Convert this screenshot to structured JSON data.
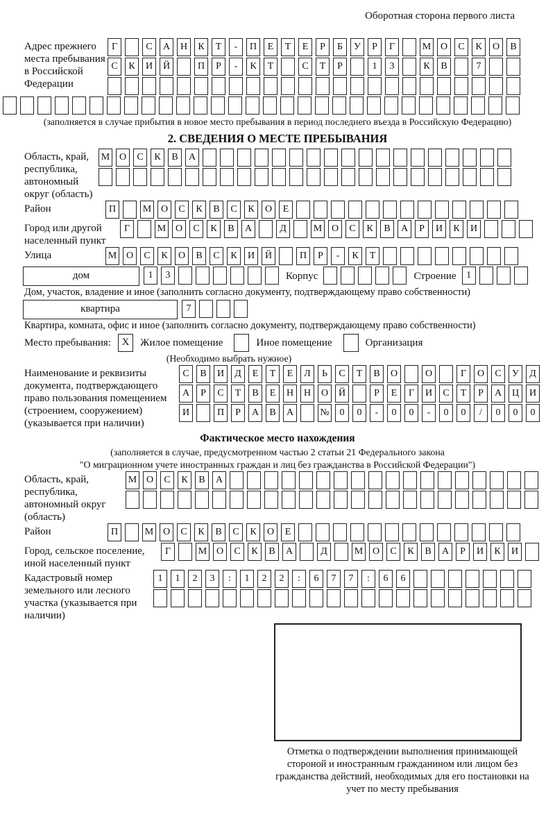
{
  "page": {
    "header_note": "Оборотная сторона первого листа"
  },
  "colors": {
    "ink": "#1a1a1a",
    "paper": "#ffffff"
  },
  "prev_address": {
    "label": "Адрес прежнего места пребывания в Российской Федерации",
    "rows": [
      {
        "cells": "Г САНКТ-ПЕТЕРБУРГ МОСКОВ",
        "count": 24
      },
      {
        "cells": "СКИЙ ПР-КТ СТР 13 КВ 7",
        "count": 24
      },
      {
        "cells": "",
        "count": 24
      },
      {
        "cells": "",
        "count": 30
      }
    ],
    "note": "(заполняется в случае прибытия в новое место пребывания в период последнего въезда в Российскую Федерацию)"
  },
  "section2": {
    "title": "2. СВЕДЕНИЯ О МЕСТЕ ПРЕБЫВАНИЯ",
    "region": {
      "label": "Область, край, республика, автономный округ (область)",
      "rows": [
        {
          "cells": "МОСКВА",
          "count": 24
        },
        {
          "cells": "",
          "count": 24
        }
      ]
    },
    "district": {
      "label": "Район",
      "row": {
        "cells": "П МОСКВСКОЕ",
        "count": 24
      }
    },
    "city": {
      "label": "Город или другой населенный пункт",
      "row": {
        "cells": "Г МОСКВА Д МОСКВАРИКИ",
        "count": 24
      }
    },
    "street": {
      "label": "Улица",
      "row": {
        "cells": "МОСКОВСКИЙ ПР-КТ",
        "count": 24
      }
    },
    "house": {
      "box_label": "дом",
      "row": {
        "cells": "13",
        "count": 8
      },
      "korpus_label": "Корпус",
      "korpus_row": {
        "cells": "",
        "count": 5
      },
      "stroenie_label": "Строение",
      "stroenie_row": {
        "cells": "1",
        "count": 4
      },
      "caption": "Дом, участок, владение и иное (заполнить согласно документу, подтверждающему право собственности)"
    },
    "apartment": {
      "box_label": "квартира",
      "row": {
        "cells": "7",
        "count": 4
      },
      "caption": "Квартира, комната, офис и иное (заполнить согласно документу, подтверждающему право собственности)"
    },
    "stay_type": {
      "label": "Место пребывания:",
      "options": [
        {
          "mark": "X",
          "label": "Жилое помещение"
        },
        {
          "mark": "",
          "label": "Иное помещение"
        },
        {
          "mark": "",
          "label": "Организация"
        }
      ],
      "note": "(Необходимо выбрать нужное)"
    },
    "document": {
      "label": "Наименование и реквизиты документа, подтверждающего право пользования помещением (строением, сооружением) (указывается при наличии)",
      "rows": [
        {
          "cells": "СВИДЕТЕЛЬСТВО О ГОСУД",
          "count": 21
        },
        {
          "cells": "АРСТВЕННОЙ РЕГИСТРАЦИ",
          "count": 21
        },
        {
          "cells": "И ПРАВА №00-00-00/000",
          "count": 21
        }
      ]
    }
  },
  "actual_location": {
    "title": "Фактическое место нахождения",
    "note_line1": "(заполняется в случае, предусмотренном частью 2 статьи 21 Федерального закона",
    "note_line2": "\"О миграционном учете иностранных граждан и лиц без гражданства в Российской Федерации\")",
    "region": {
      "label": "Область, край, республика, автономный округ (область)",
      "rows": [
        {
          "cells": "МОСКВА",
          "count": 24
        },
        {
          "cells": "",
          "count": 24
        }
      ]
    },
    "district": {
      "label": "Район",
      "row": {
        "cells": "П МОСКВСКОЕ",
        "count": 24
      }
    },
    "city": {
      "label": "Город, сельское поселение, иной населенный пункт",
      "row": {
        "cells": "Г МОСКВА Д МОСКВАРИКИ",
        "count": 22
      }
    },
    "cadastre": {
      "label": "Кадастровый номер земельного или лесного участка (указывается при наличии)",
      "rows": [
        {
          "cells": "1123:122:677:66",
          "count": 22
        },
        {
          "cells": "",
          "count": 22
        }
      ]
    }
  },
  "confirmation": {
    "caption": "Отметка о подтверждении выполнения принимающей стороной и иностранным гражданином или лицом без гражданства действий, необходимых для его постановки на учет по месту пребывания"
  }
}
